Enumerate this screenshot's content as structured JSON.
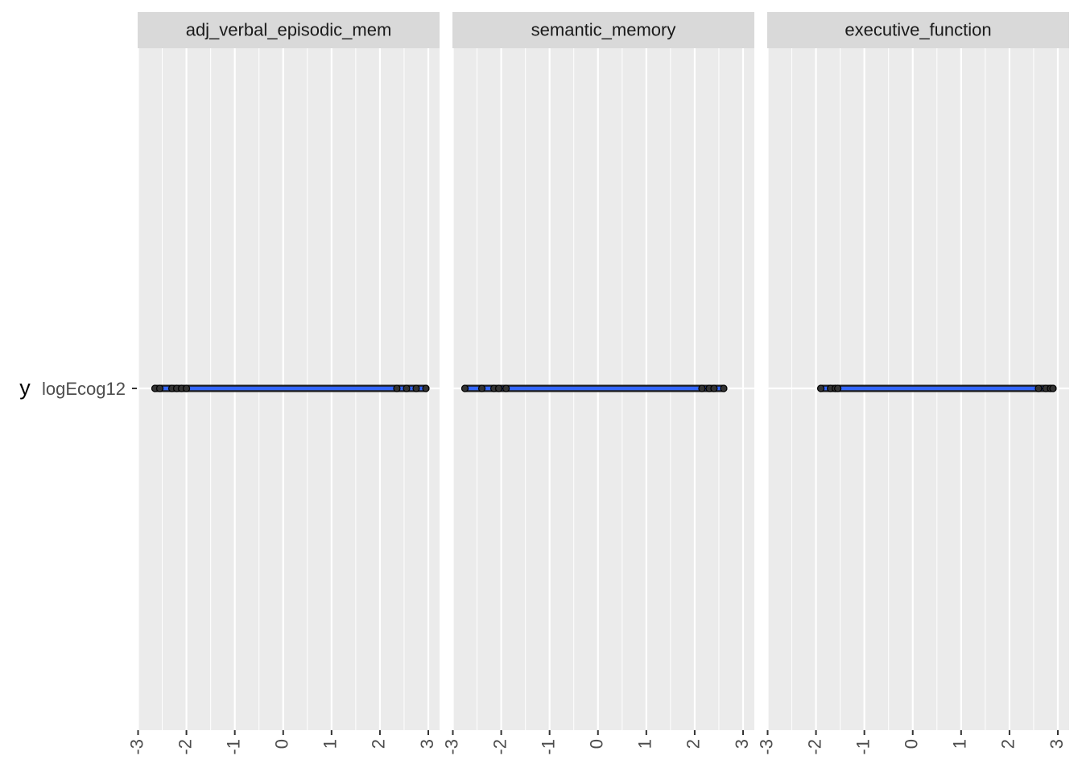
{
  "chart_data": {
    "type": "scatter",
    "facets": [
      "adj_verbal_episodic_mem",
      "semantic_memory",
      "executive_function"
    ],
    "ylabel": "y",
    "y_categories": [
      "logEcog12"
    ],
    "xlabel": "",
    "xlim": [
      -3,
      3
    ],
    "x_ticks": [
      -3,
      -2,
      -1,
      0,
      1,
      2,
      3
    ],
    "x_tick_labels": [
      "-3",
      "-2",
      "-1",
      "0",
      "1",
      "2",
      "3"
    ],
    "grid": true,
    "panels": [
      {
        "facet": "adj_verbal_episodic_mem",
        "y": "logEcog12",
        "x_range": [
          -2.65,
          2.95
        ],
        "points_x": [
          -2.65,
          -2.55,
          -2.3,
          -2.2,
          -2.1,
          -2.0,
          2.35,
          2.55,
          2.75,
          2.95
        ]
      },
      {
        "facet": "semantic_memory",
        "y": "logEcog12",
        "x_range": [
          -2.75,
          2.6
        ],
        "points_x": [
          -2.75,
          -2.4,
          -2.15,
          -2.05,
          -1.9,
          2.15,
          2.3,
          2.4,
          2.6
        ]
      },
      {
        "facet": "executive_function",
        "y": "logEcog12",
        "x_range": [
          -1.9,
          2.9
        ],
        "points_x": [
          -1.9,
          -1.7,
          -1.6,
          -1.55,
          2.6,
          2.75,
          2.85,
          2.9
        ]
      }
    ],
    "colors": {
      "panel_bg": "#ebebeb",
      "strip_bg": "#d9d9d9",
      "grid": "#ffffff",
      "line": "#3366ff",
      "point_fill": "#333333",
      "point_stroke": "#000000"
    }
  }
}
